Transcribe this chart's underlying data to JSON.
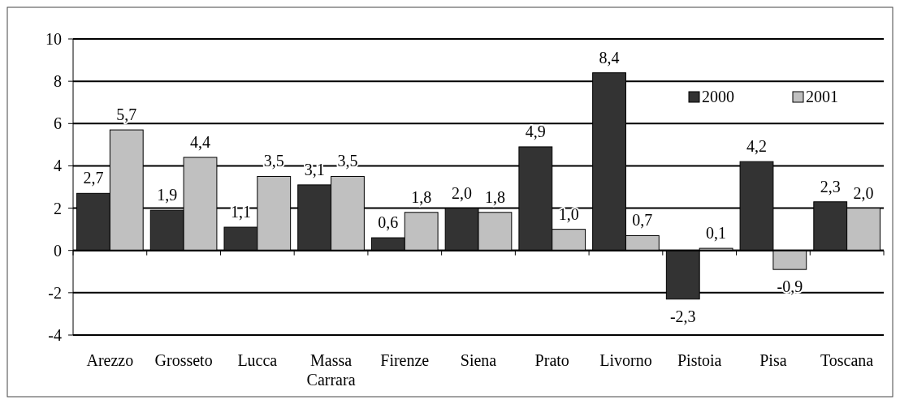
{
  "chart_data": {
    "type": "bar",
    "categories": [
      "Arezzo",
      "Grosseto",
      "Lucca",
      "Massa Carrara",
      "Firenze",
      "Siena",
      "Prato",
      "Livorno",
      "Pistoia",
      "Pisa",
      "Toscana"
    ],
    "series": [
      {
        "name": "2000",
        "color": "#333333",
        "values": [
          2.7,
          1.9,
          1.1,
          3.1,
          0.6,
          2.0,
          4.9,
          8.4,
          -2.3,
          4.2,
          2.3
        ],
        "value_labels": [
          "2,7",
          "1,9",
          "1,1",
          "3,1",
          "0,6",
          "2,0",
          "4,9",
          "8,4",
          "-2,3",
          "4,2",
          "2,3"
        ]
      },
      {
        "name": "2001",
        "color": "#c0c0c0",
        "values": [
          5.7,
          4.4,
          3.5,
          3.5,
          1.8,
          1.8,
          1.0,
          0.7,
          0.1,
          -0.9,
          2.0
        ],
        "value_labels": [
          "5,7",
          "4,4",
          "3,5",
          "3,5",
          "1,8",
          "1,8",
          "1,0",
          "0,7",
          "0,1",
          "-0,9",
          "2,0"
        ]
      }
    ],
    "ylim": [
      -4,
      10
    ],
    "yticks": [
      -4,
      -2,
      0,
      2,
      4,
      6,
      8,
      10
    ],
    "grid": "y",
    "legend": "top right"
  }
}
